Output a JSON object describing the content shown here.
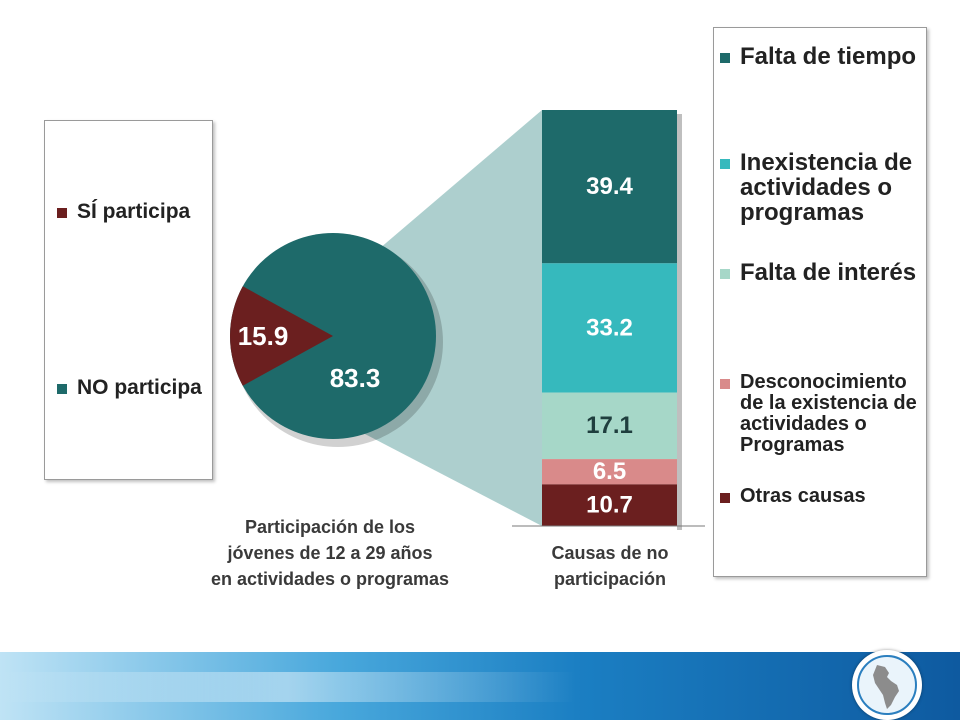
{
  "left_legend": {
    "items": [
      {
        "label": "SÍ participa",
        "color": "#6b1f1f"
      },
      {
        "label": "NO participa",
        "color": "#1e6a6a"
      }
    ]
  },
  "right_legend": {
    "items": [
      {
        "label": "Falta de tiempo",
        "color": "#1e6a6a"
      },
      {
        "label": "Inexistencia de actividades o programas",
        "color": "#36b9bd"
      },
      {
        "label": "Falta de interés",
        "color": "#a6d7c8"
      },
      {
        "label": "Desconocimiento de la existencia de actividades o Programas",
        "color": "#d98a8a"
      },
      {
        "label": "Otras causas",
        "color": "#6b1f1f"
      }
    ]
  },
  "pie_caption": [
    "Participación de los",
    "jóvenes de 12 a 29 años",
    "en actividades o programas"
  ],
  "bar_caption": [
    "Causas de no",
    "participación"
  ],
  "chart_data": [
    {
      "type": "pie",
      "slices": [
        {
          "label": "SÍ participa",
          "value": 15.9,
          "color": "#6b1f1f"
        },
        {
          "label": "NO participa",
          "value": 83.3,
          "color": "#1e6a6a"
        }
      ],
      "data_labels": [
        "15.9",
        "83.3"
      ]
    },
    {
      "type": "bar",
      "stacked": true,
      "categories": [
        "Causas de no participación"
      ],
      "series": [
        {
          "name": "Falta de tiempo",
          "values": [
            39.4
          ],
          "color": "#1e6a6a"
        },
        {
          "name": "Inexistencia de actividades o programas",
          "values": [
            33.2
          ],
          "color": "#36b9bd"
        },
        {
          "name": "Falta de interés",
          "values": [
            17.1
          ],
          "color": "#a6d7c8"
        },
        {
          "name": "Desconocimiento de la existencia de actividades o Programas",
          "values": [
            6.5
          ],
          "color": "#d98a8a"
        },
        {
          "name": "Otras causas",
          "values": [
            10.7
          ],
          "color": "#6b1f1f"
        }
      ],
      "data_labels": [
        "39.4",
        "33.2",
        "17.1",
        "6.5",
        "10.7"
      ]
    }
  ]
}
